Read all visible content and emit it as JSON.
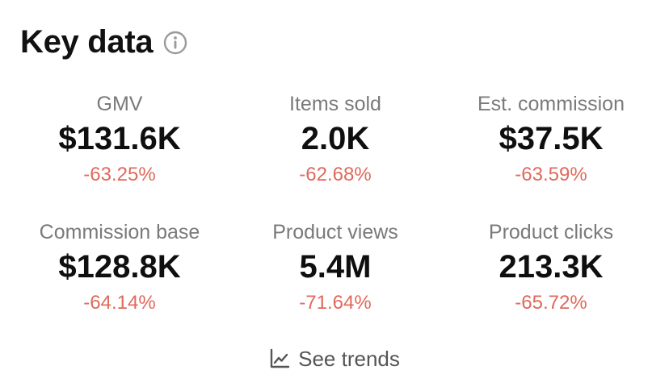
{
  "header": {
    "title": "Key data",
    "info_icon": "info-icon"
  },
  "metrics": [
    {
      "label": "GMV",
      "value": "$131.6K",
      "change": "-63.25%"
    },
    {
      "label": "Items sold",
      "value": "2.0K",
      "change": "-62.68%"
    },
    {
      "label": "Est. commission",
      "value": "$37.5K",
      "change": "-63.59%"
    },
    {
      "label": "Commission base",
      "value": "$128.8K",
      "change": "-64.14%"
    },
    {
      "label": "Product views",
      "value": "5.4M",
      "change": "-71.64%"
    },
    {
      "label": "Product clicks",
      "value": "213.3K",
      "change": "-65.72%"
    }
  ],
  "trends": {
    "label": "See trends",
    "icon": "line-chart-icon"
  },
  "colors": {
    "negative": "#e0695c",
    "label": "#7a7a7a",
    "value": "#0f0f0f"
  }
}
